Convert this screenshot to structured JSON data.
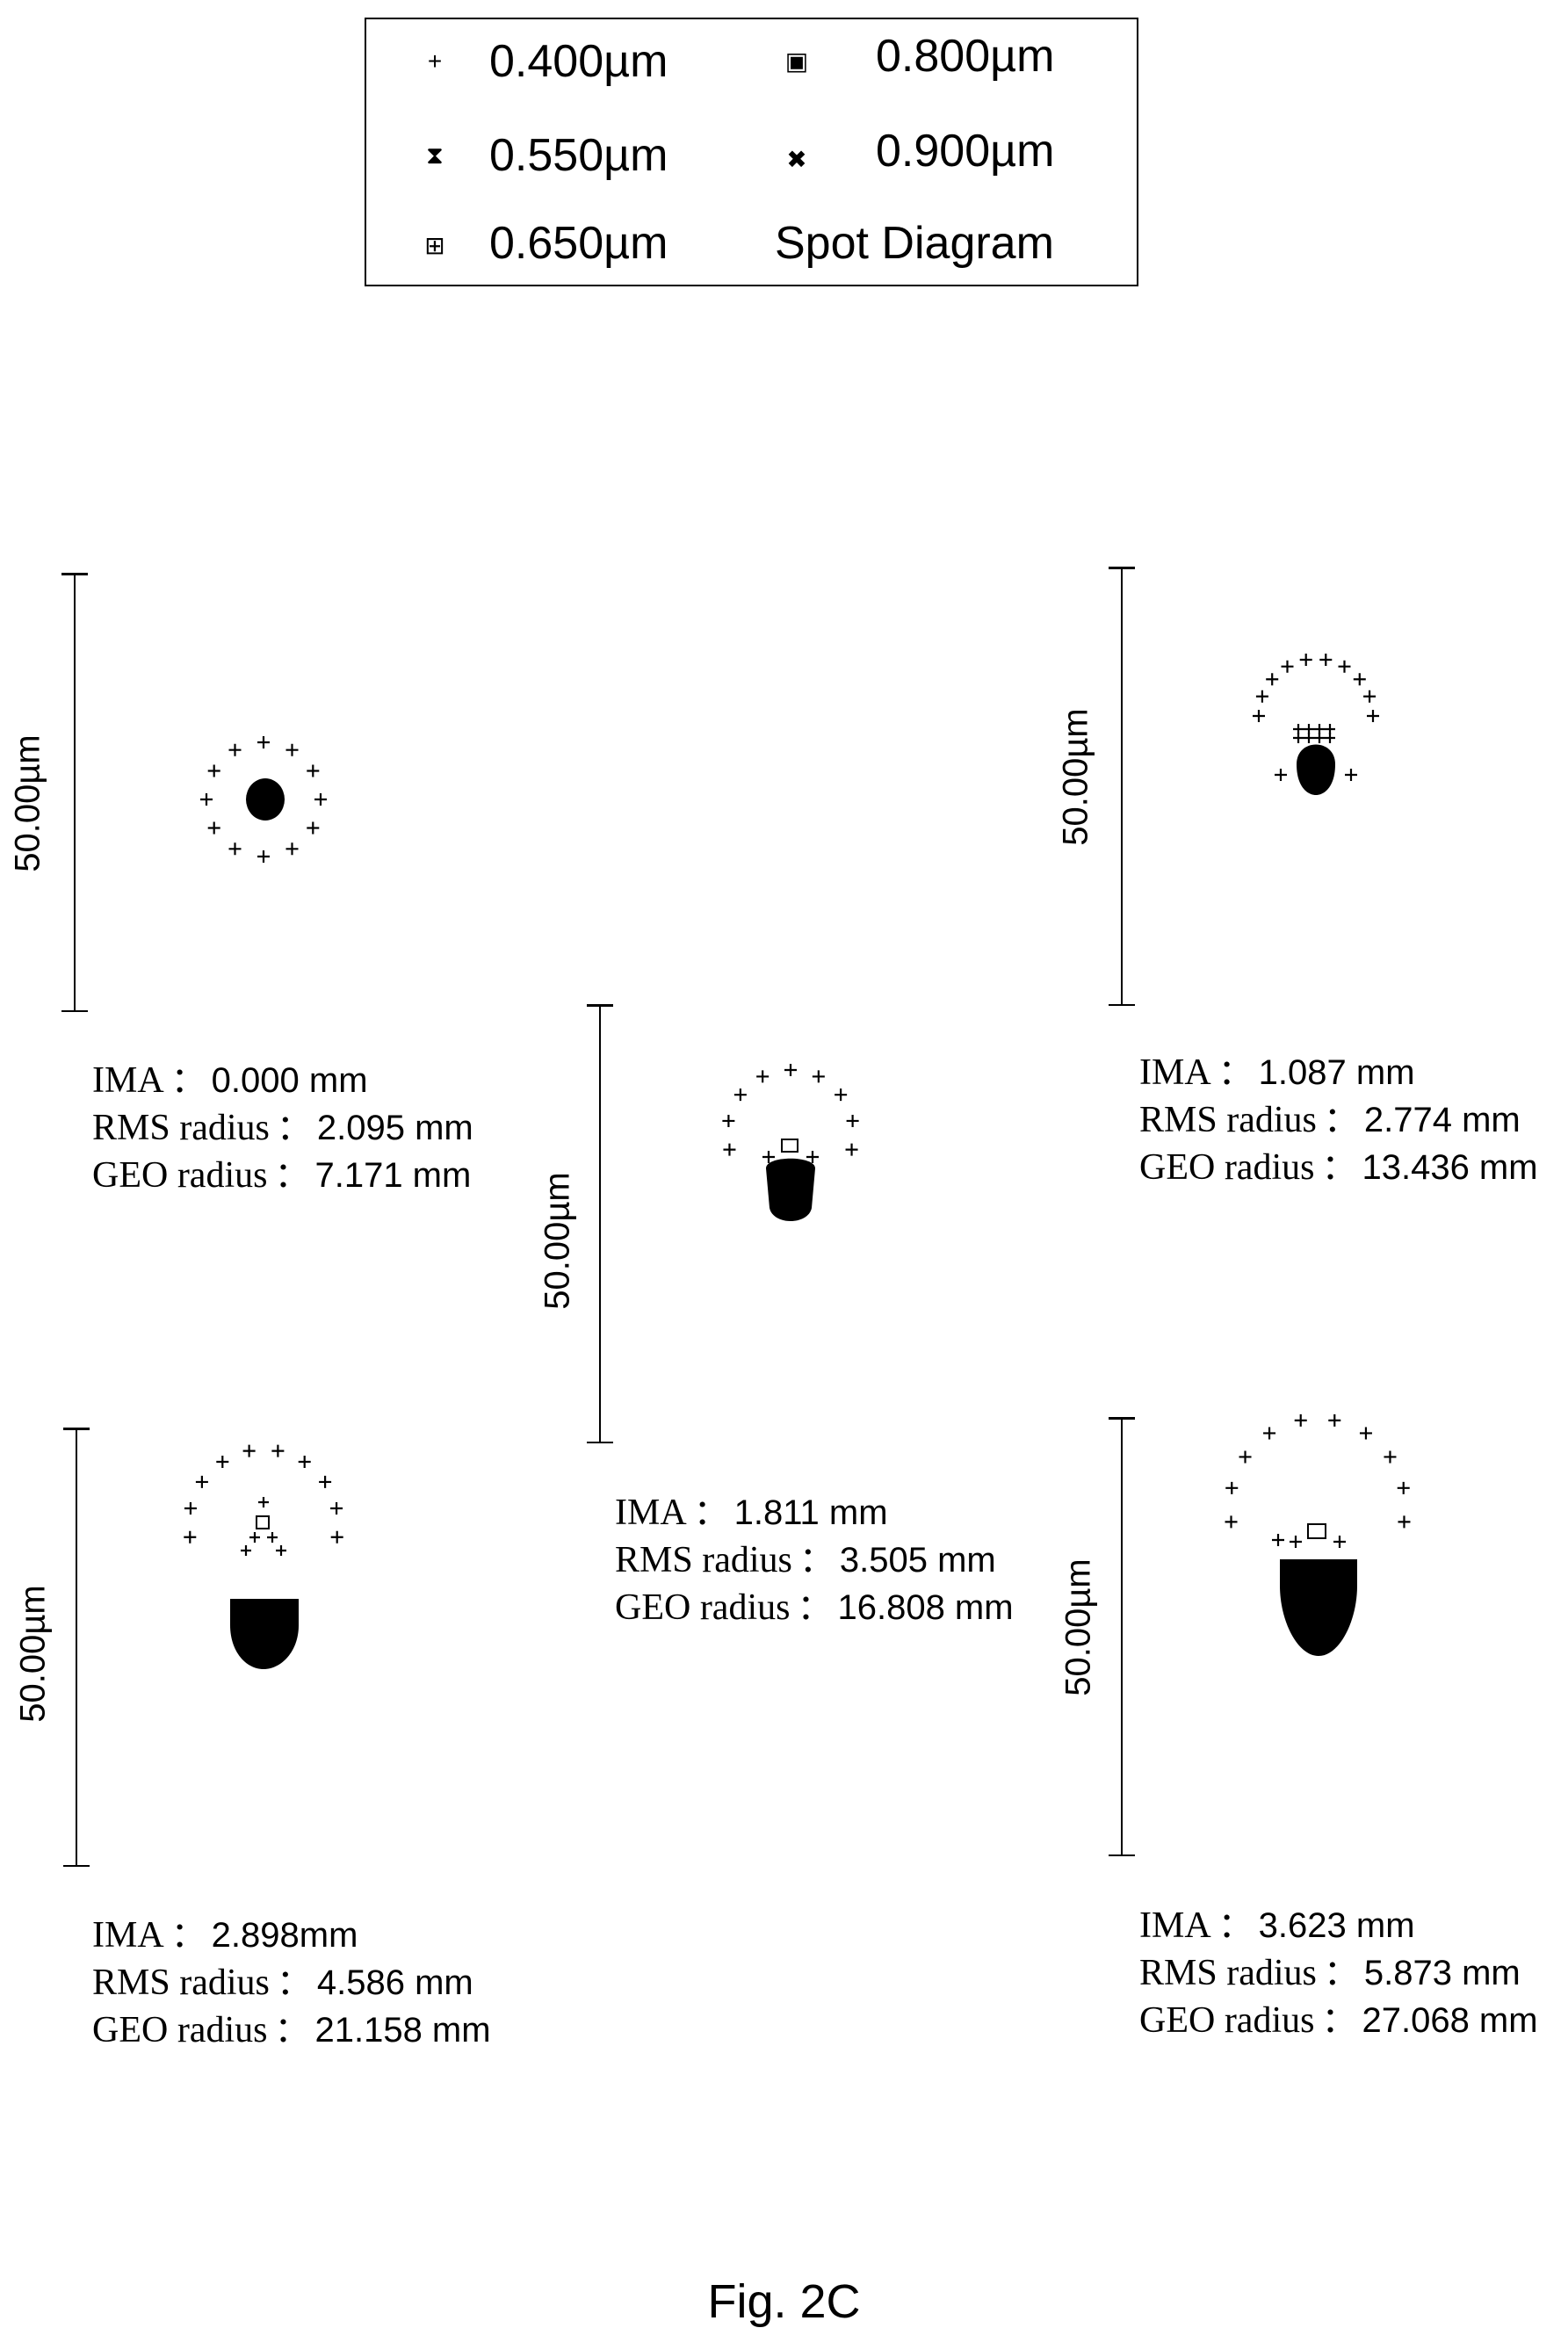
{
  "legend": {
    "items": [
      {
        "marker": "+",
        "icon": "plus-icon",
        "label": "0.400µm"
      },
      {
        "marker": "▣",
        "icon": "filled-square-icon",
        "label": "0.800µm"
      },
      {
        "marker": "⧗",
        "icon": "hourglass-icon",
        "label": "0.550µm"
      },
      {
        "marker": "✖",
        "icon": "cross-icon",
        "label": "0.900µm"
      },
      {
        "marker": "⊞",
        "icon": "boxed-square-icon",
        "label": "0.650µm"
      }
    ],
    "title": "Spot Diagram"
  },
  "panels": [
    {
      "scale": "50.00µm",
      "ima_key": "IMA",
      "ima": "0.000 mm",
      "rms_key": "RMS radius",
      "rms": "2.095 mm",
      "geo_key": "GEO radius",
      "geo": "7.171 mm"
    },
    {
      "scale": "50.00µm",
      "ima_key": "IMA",
      "ima": "1.087 mm",
      "rms_key": "RMS radius",
      "rms": "2.774 mm",
      "geo_key": "GEO radius",
      "geo": "13.436 mm"
    },
    {
      "scale": "50.00µm",
      "ima_key": "IMA",
      "ima": "1.811 mm",
      "rms_key": "RMS radius",
      "rms": "3.505 mm",
      "geo_key": "GEO radius",
      "geo": "16.808 mm"
    },
    {
      "scale": "50.00µm",
      "ima_key": "IMA",
      "ima": "2.898mm",
      "rms_key": "RMS radius",
      "rms": "4.586 mm",
      "geo_key": "GEO radius",
      "geo": "21.158 mm"
    },
    {
      "scale": "50.00µm",
      "ima_key": "IMA",
      "ima": "3.623 mm",
      "rms_key": "RMS radius",
      "rms": "5.873 mm",
      "geo_key": "GEO radius",
      "geo": "27.068 mm"
    }
  ],
  "separator": "：",
  "caption": "Fig. 2C"
}
